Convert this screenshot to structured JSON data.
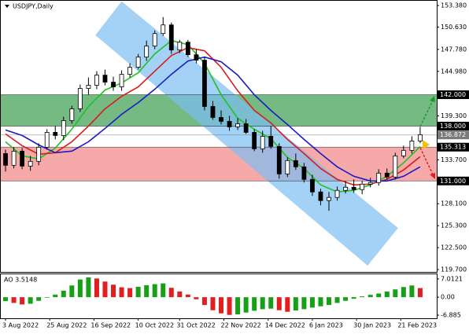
{
  "chart_data": {
    "type": "candlestick",
    "title": "USDJPY,Daily",
    "xlim": [
      -2,
      156
    ],
    "xticks": [
      {
        "value": 0,
        "label": "3 Aug 2022"
      },
      {
        "value": 16,
        "label": "25 Aug 2022"
      },
      {
        "value": 32,
        "label": "16 Sep 2022"
      },
      {
        "value": 48,
        "label": "10 Oct 2022"
      },
      {
        "value": 63,
        "label": "31 Oct 2022"
      },
      {
        "value": 79,
        "label": "22 Nov 2022"
      },
      {
        "value": 95,
        "label": "14 Dec 2022"
      },
      {
        "value": 111,
        "label": "6 Jan 2023"
      },
      {
        "value": 127,
        "label": "30 Jan 2023"
      },
      {
        "value": 143,
        "label": "21 Feb 2023"
      }
    ],
    "ylim": [
      119.3,
      154.08
    ],
    "yticks": [
      {
        "value": 153.38,
        "label": "153.380"
      },
      {
        "value": 150.63,
        "label": "150.630"
      },
      {
        "value": 147.78,
        "label": "147.780"
      },
      {
        "value": 144.98,
        "label": "144.980"
      },
      {
        "value": 139.3,
        "label": "139.300"
      },
      {
        "value": 133.7,
        "label": "133.700"
      },
      {
        "value": 128.1,
        "label": "128.100"
      },
      {
        "value": 125.3,
        "label": "125.300"
      },
      {
        "value": 122.5,
        "label": "122.500"
      },
      {
        "value": 119.7,
        "label": "119.700"
      }
    ],
    "levels": [
      {
        "value": 142,
        "label": "142.000",
        "color": "#000000"
      },
      {
        "value": 138,
        "label": "138.000",
        "color": "#000000"
      },
      {
        "value": 136.872,
        "label": "136.872",
        "color": "#7a7a7a"
      },
      {
        "value": 135.313,
        "label": "135.313",
        "color": "#000000"
      },
      {
        "value": 131,
        "label": "131.000",
        "color": "#000000"
      }
    ],
    "zones": [
      {
        "from": 138,
        "to": 142,
        "color": "#5cae6c"
      },
      {
        "from": 131,
        "to": 135.313,
        "color": "#f59a9a"
      }
    ],
    "channel": {
      "x": [
        42,
        142,
        131,
        32.5
      ],
      "y": [
        153.9,
        125.0,
        120.2,
        149.6
      ],
      "color": "#7dbdf2"
    },
    "x": [
      0,
      3,
      6,
      9,
      12,
      15,
      18,
      21,
      24,
      27,
      30,
      33,
      36,
      39,
      42,
      45,
      48,
      51,
      54,
      57,
      60,
      63,
      66,
      69,
      72,
      75,
      78,
      81,
      84,
      87,
      90,
      93,
      96,
      99,
      102,
      105,
      108,
      111,
      114,
      117,
      120,
      123,
      126,
      129,
      132,
      135,
      138,
      141,
      144,
      147,
      150
    ],
    "open": [
      134.5,
      133.0,
      134.8,
      132.9,
      133.5,
      135.3,
      137.2,
      136.8,
      138.7,
      140.2,
      142.8,
      143.2,
      144.5,
      143.6,
      143.0,
      144.6,
      145.5,
      146.8,
      148.2,
      149.8,
      150.9,
      147.7,
      148.7,
      147.1,
      146.4,
      140.5,
      139.1,
      138.6,
      137.9,
      138.3,
      137.2,
      135.1,
      136.7,
      135.4,
      131.9,
      133.6,
      132.8,
      131.2,
      129.6,
      128.5,
      128.9,
      129.8,
      130.2,
      129.9,
      130.6,
      130.8,
      132.0,
      131.5,
      134.2,
      134.9,
      136.1
    ],
    "high": [
      135.0,
      135.3,
      135.2,
      134.2,
      135.8,
      137.6,
      138.0,
      139.2,
      140.6,
      143.3,
      144.2,
      145.0,
      145.2,
      144.3,
      145.1,
      146.0,
      147.2,
      148.9,
      150.2,
      151.9,
      151.2,
      149.0,
      149.0,
      147.8,
      146.8,
      141.2,
      140.0,
      139.3,
      139.0,
      138.9,
      137.6,
      137.4,
      138.0,
      135.8,
      134.0,
      134.5,
      133.3,
      131.8,
      130.0,
      129.6,
      130.3,
      131.0,
      131.2,
      131.0,
      131.4,
      132.5,
      132.6,
      134.6,
      135.5,
      136.7,
      137.9
    ],
    "low": [
      132.2,
      132.6,
      132.5,
      132.3,
      133.0,
      135.0,
      136.3,
      136.2,
      138.3,
      139.8,
      142.0,
      142.7,
      143.2,
      142.5,
      142.5,
      144.2,
      145.2,
      146.3,
      147.8,
      149.5,
      147.2,
      147.3,
      146.8,
      146.0,
      140.0,
      138.8,
      138.2,
      137.4,
      137.5,
      137.0,
      134.8,
      134.6,
      135.1,
      131.3,
      131.5,
      132.4,
      130.8,
      129.1,
      127.9,
      127.2,
      128.5,
      129.4,
      129.5,
      129.3,
      130.2,
      130.4,
      131.2,
      131.2,
      133.9,
      134.5,
      135.8
    ],
    "close": [
      133.0,
      134.8,
      132.9,
      133.5,
      135.3,
      137.2,
      136.8,
      138.7,
      140.2,
      142.8,
      143.2,
      144.5,
      143.6,
      143.0,
      144.6,
      145.5,
      146.8,
      148.2,
      149.8,
      150.9,
      147.7,
      148.7,
      147.1,
      146.4,
      140.5,
      139.1,
      138.6,
      137.9,
      138.3,
      137.2,
      135.1,
      136.7,
      135.4,
      131.9,
      133.6,
      132.8,
      131.2,
      129.6,
      128.5,
      128.9,
      129.8,
      130.2,
      129.9,
      130.6,
      130.8,
      132.0,
      131.5,
      134.2,
      134.9,
      136.1,
      136.9
    ],
    "ma_x": [
      0,
      6,
      12,
      18,
      24,
      30,
      36,
      42,
      48,
      54,
      60,
      66,
      72,
      78,
      84,
      90,
      96,
      102,
      108,
      114,
      120,
      126,
      132,
      138,
      144,
      150
    ],
    "ma": [
      {
        "color": "#1fc31f",
        "values": [
          136.0,
          134.2,
          133.8,
          135.2,
          137.6,
          140.5,
          142.6,
          143.5,
          144.8,
          147.2,
          148.9,
          148.4,
          146.0,
          142.0,
          139.0,
          137.6,
          136.4,
          134.0,
          132.6,
          130.5,
          129.6,
          129.8,
          130.5,
          131.6,
          133.3,
          135.4
        ]
      },
      {
        "color": "#d81b1b",
        "values": [
          137.0,
          135.5,
          134.4,
          134.6,
          136.0,
          138.0,
          140.2,
          141.8,
          143.0,
          145.0,
          147.0,
          148.0,
          147.6,
          145.5,
          142.5,
          140.0,
          138.4,
          136.3,
          134.5,
          132.6,
          131.2,
          130.5,
          130.6,
          131.2,
          132.4,
          134.1
        ]
      },
      {
        "color": "#1a1ac8",
        "values": [
          137.5,
          136.8,
          135.6,
          134.6,
          134.8,
          136.0,
          137.7,
          139.5,
          141.0,
          142.7,
          144.6,
          146.3,
          146.8,
          146.2,
          144.5,
          142.0,
          140.0,
          138.2,
          136.3,
          134.5,
          132.8,
          131.6,
          131.0,
          131.0,
          131.6,
          132.8
        ]
      }
    ],
    "ao": {
      "title": "AO 3.5148",
      "ylim": [
        -8.1,
        8.8
      ],
      "yticks": [
        {
          "value": 7.0121,
          "label": "7.0121"
        },
        {
          "value": 0,
          "label": "0.00"
        },
        {
          "value": -6.885,
          "label": "-6.885"
        }
      ],
      "up_color": "#16a016",
      "down_color": "#e02020",
      "values": [
        -1.5,
        -2.2,
        -2.8,
        -2.5,
        -1.4,
        -0.2,
        1.0,
        2.5,
        4.5,
        6.8,
        7.6,
        7.2,
        6.0,
        4.8,
        3.8,
        3.5,
        4.0,
        4.6,
        5.0,
        5.3,
        3.6,
        2.2,
        1.0,
        -0.8,
        -3.0,
        -5.0,
        -6.2,
        -6.8,
        -6.6,
        -5.9,
        -5.2,
        -4.6,
        -4.4,
        -5.0,
        -5.6,
        -5.1,
        -4.6,
        -4.0,
        -3.5,
        -3.0,
        -2.2,
        -1.4,
        -0.6,
        0.3,
        0.9,
        1.4,
        2.2,
        3.0,
        3.9,
        4.5,
        3.5
      ]
    }
  }
}
